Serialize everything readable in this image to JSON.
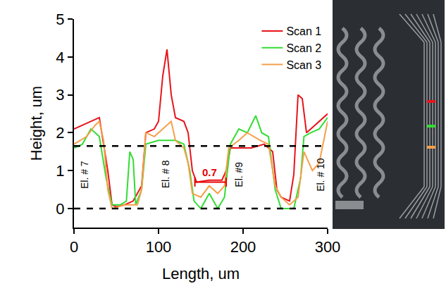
{
  "chart_data": {
    "type": "line",
    "x_label": "Length, um",
    "y_label": "Height, um",
    "xlim": [
      0,
      300
    ],
    "ylim": [
      -0.5,
      5
    ],
    "xticks": [
      0,
      100,
      200,
      300
    ],
    "yticks": [
      0,
      1,
      2,
      3,
      4,
      5
    ],
    "legend": "top right",
    "grid": false,
    "hlines": [
      1.65,
      0
    ],
    "series": [
      {
        "name": "Scan 1",
        "color": "#e8141c",
        "x": [
          0,
          20,
          30,
          40,
          45,
          50,
          60,
          70,
          80,
          85,
          95,
          100,
          105,
          110,
          115,
          120,
          130,
          135,
          140,
          145,
          160,
          175,
          180,
          185,
          195,
          210,
          225,
          235,
          240,
          245,
          255,
          260,
          265,
          270,
          275,
          285,
          295,
          300
        ],
        "values": [
          2.1,
          2.3,
          2.4,
          1.0,
          0.1,
          0.05,
          0.1,
          0.2,
          0.6,
          2.0,
          2.1,
          2.3,
          3.5,
          4.2,
          3.0,
          2.4,
          2.3,
          2.0,
          1.0,
          0.7,
          0.75,
          0.75,
          1.0,
          1.6,
          1.6,
          1.6,
          1.7,
          1.5,
          0.5,
          0.3,
          0.2,
          0.9,
          3.0,
          2.9,
          2.0,
          2.2,
          2.4,
          2.5
        ]
      },
      {
        "name": "Scan 2",
        "color": "#33dd33",
        "x": [
          0,
          10,
          20,
          30,
          38,
          45,
          55,
          62,
          66,
          70,
          73,
          80,
          85,
          100,
          120,
          130,
          137,
          142,
          150,
          160,
          170,
          178,
          185,
          195,
          205,
          215,
          222,
          230,
          238,
          245,
          260,
          268,
          272,
          280,
          290,
          300
        ],
        "values": [
          1.6,
          1.7,
          2.1,
          1.9,
          0.8,
          0.1,
          0.1,
          0.2,
          1.5,
          1.3,
          0.1,
          0.5,
          1.7,
          1.8,
          1.8,
          1.7,
          1.0,
          0.2,
          0.0,
          0.4,
          0.0,
          0.3,
          1.7,
          2.1,
          2.0,
          2.45,
          2.0,
          1.9,
          0.5,
          0.0,
          0.0,
          0.8,
          1.9,
          2.0,
          2.1,
          2.4
        ]
      },
      {
        "name": "Scan 3",
        "color": "#f5a04a",
        "x": [
          0,
          15,
          25,
          30,
          35,
          40,
          45,
          60,
          75,
          80,
          85,
          95,
          105,
          115,
          120,
          130,
          135,
          140,
          150,
          160,
          170,
          178,
          183,
          195,
          205,
          220,
          230,
          238,
          245,
          255,
          265,
          272,
          282,
          290,
          300
        ],
        "values": [
          1.7,
          1.9,
          2.2,
          2.3,
          1.8,
          0.5,
          0.0,
          0.1,
          0.1,
          0.5,
          2.0,
          1.9,
          2.1,
          2.3,
          1.8,
          1.6,
          1.2,
          0.4,
          0.3,
          0.6,
          0.4,
          0.6,
          1.6,
          1.8,
          2.0,
          1.8,
          1.7,
          0.6,
          0.3,
          0.1,
          0.3,
          1.5,
          1.0,
          1.2,
          2.3
        ]
      }
    ],
    "annotations": [
      {
        "text": "0.7",
        "x": 160,
        "y": 0.7,
        "x_span": [
          143,
          180
        ],
        "color": "#e60000"
      },
      {
        "text": "El. # 7",
        "x": 12,
        "y": 0.9
      },
      {
        "text": "El. # 8",
        "x": 108,
        "y": 0.9
      },
      {
        "text": "El. #9",
        "x": 195,
        "y": 0.9
      },
      {
        "text": "El. # 10",
        "x": 291,
        "y": 0.9
      }
    ]
  }
}
